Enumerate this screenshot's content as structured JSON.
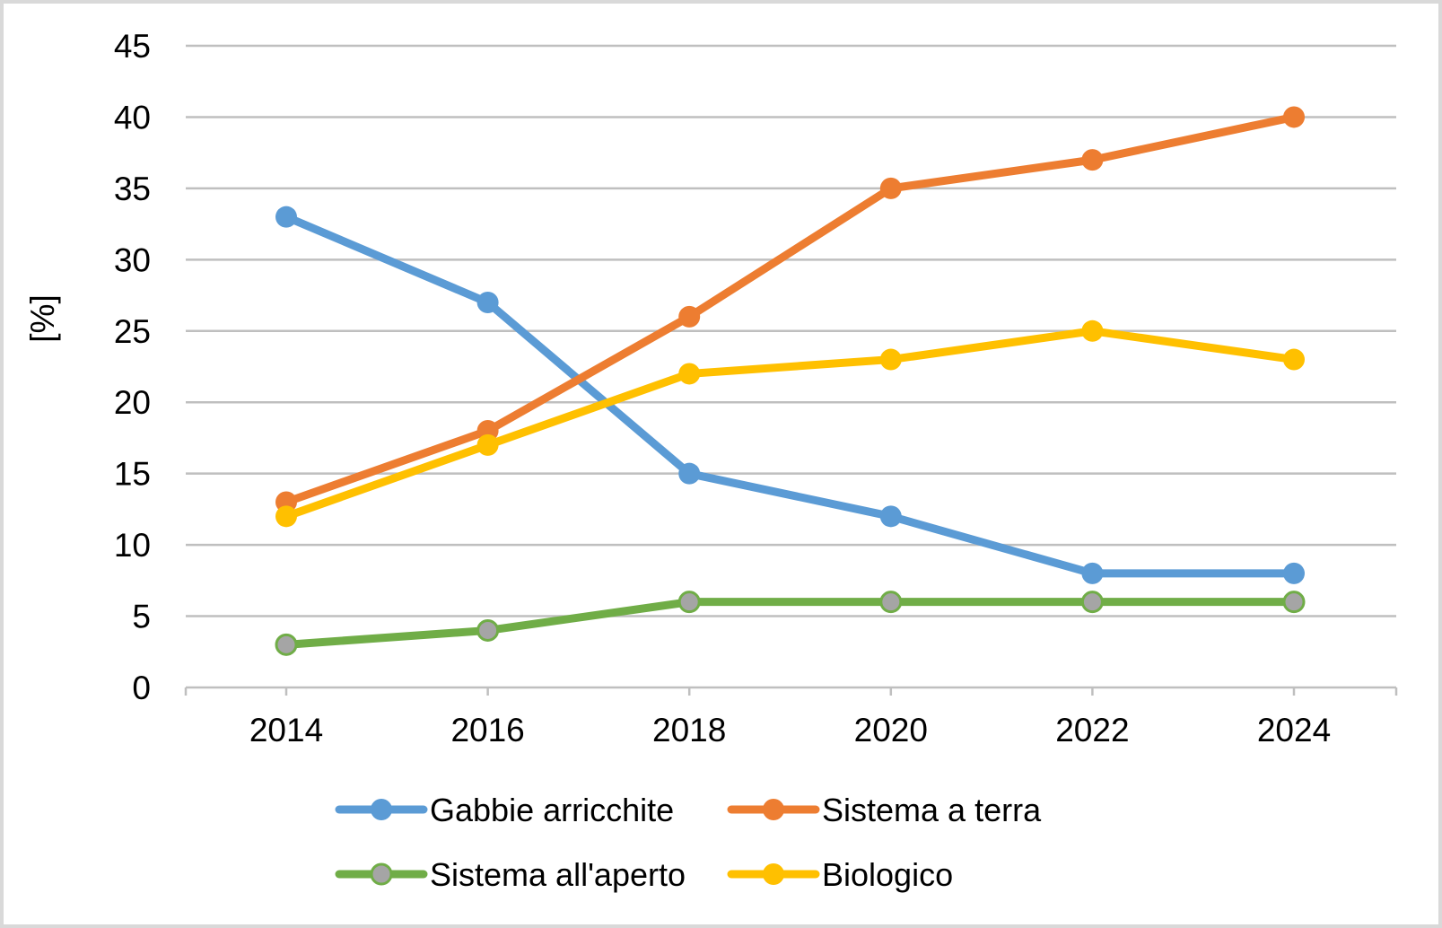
{
  "chart_data": {
    "type": "line",
    "title": "",
    "xlabel": "",
    "ylabel": "[%]",
    "x": [
      2014,
      2016,
      2018,
      2020,
      2022,
      2024
    ],
    "x_tick_labels": [
      "2014",
      "2016",
      "2018",
      "2020",
      "2022",
      "2024"
    ],
    "y_tick_labels": [
      "0",
      "5",
      "10",
      "15",
      "20",
      "25",
      "30",
      "35",
      "40",
      "45"
    ],
    "ylim": [
      0,
      45
    ],
    "y_step": 5,
    "grid": true,
    "legend_position": "bottom",
    "series": [
      {
        "name": "Gabbie arricchite",
        "color": "#5b9bd5",
        "marker_fill": "#5b9bd5",
        "values": [
          33,
          27,
          15,
          12,
          8,
          8
        ]
      },
      {
        "name": "Sistema a terra",
        "color": "#ed7d31",
        "marker_fill": "#ed7d31",
        "values": [
          13,
          18,
          26,
          35,
          37,
          40
        ]
      },
      {
        "name": "Sistema all'aperto",
        "color": "#70ad47",
        "marker_fill": "#a5a5a5",
        "values": [
          3,
          4,
          6,
          6,
          6,
          6
        ]
      },
      {
        "name": "Biologico",
        "color": "#ffc000",
        "marker_fill": "#ffc000",
        "values": [
          12,
          17,
          22,
          23,
          25,
          23
        ]
      }
    ]
  }
}
